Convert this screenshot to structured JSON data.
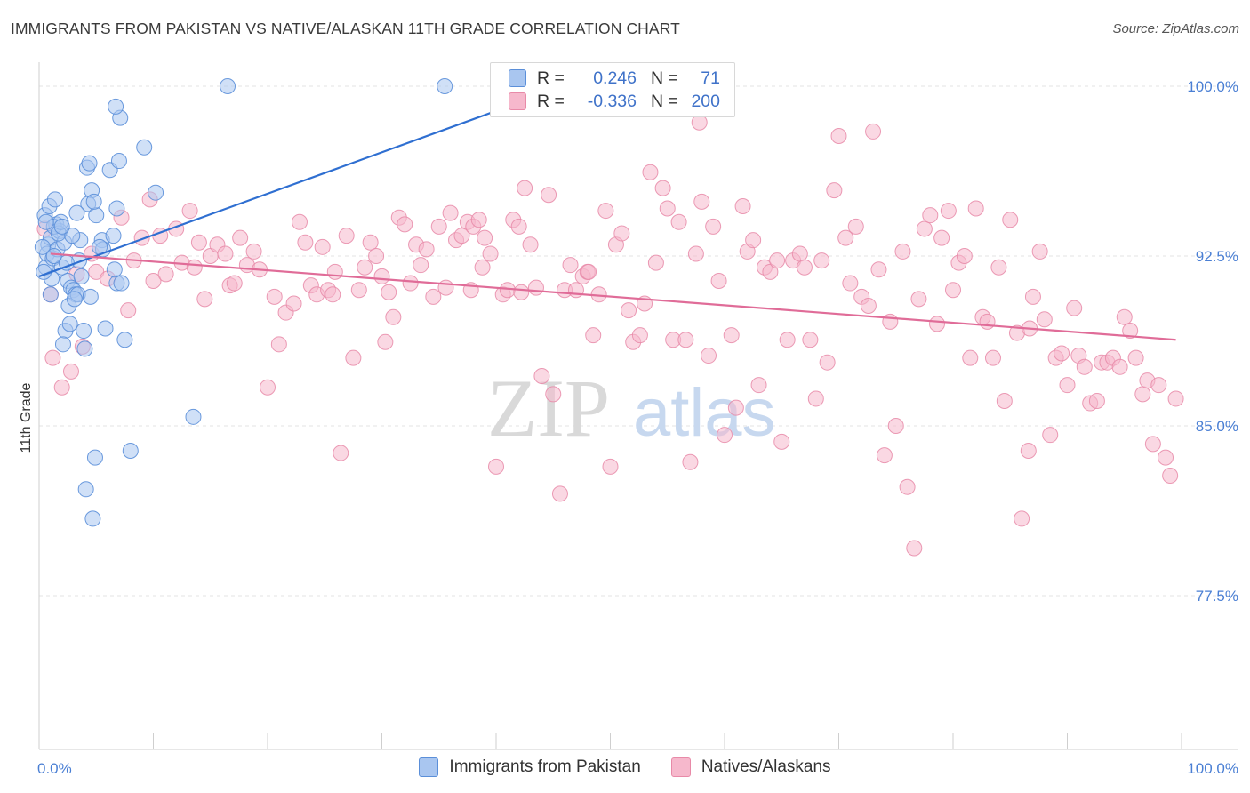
{
  "title": "IMMIGRANTS FROM PAKISTAN VS NATIVE/ALASKAN 11TH GRADE CORRELATION CHART",
  "source": "Source: ZipAtlas.com",
  "watermark": {
    "zip": "ZIP",
    "atlas": "atlas"
  },
  "legend_top": {
    "rows": [
      {
        "r_label": "R =",
        "r_value": "0.246",
        "n_label": "N =",
        "n_value": "71"
      },
      {
        "r_label": "R =",
        "r_value": "-0.336",
        "n_label": "N =",
        "n_value": "200"
      }
    ]
  },
  "colors": {
    "blue_fill": "#a9c6f0",
    "blue_stroke": "#5b8fd9",
    "blue_line": "#2f6fd1",
    "pink_fill": "#f6b8cc",
    "pink_stroke": "#e88aa8",
    "pink_line": "#e06c98",
    "axis_text": "#4a7fd4",
    "grid": "#e3e3e3"
  },
  "chart_data": {
    "type": "scatter",
    "title": "IMMIGRANTS FROM PAKISTAN VS NATIVE/ALASKAN 11TH GRADE CORRELATION CHART",
    "xlabel": "",
    "ylabel": "11th Grade",
    "xlim": [
      0,
      100
    ],
    "ylim": [
      70.5,
      102
    ],
    "x_tick_labels": [
      "0.0%",
      "100.0%"
    ],
    "y_ticks": [
      {
        "value": 100.0,
        "label": "100.0%"
      },
      {
        "value": 92.5,
        "label": "92.5%"
      },
      {
        "value": 85.0,
        "label": "85.0%"
      },
      {
        "value": 77.5,
        "label": "77.5%"
      }
    ],
    "legend_position": "bottom-center",
    "series": [
      {
        "name": "Immigrants from Pakistan",
        "r": 0.246,
        "n": 71,
        "trend": {
          "x": [
            0,
            40.5
          ],
          "y": [
            91.6,
            99.0
          ]
        },
        "points": [
          [
            0.6,
            92.0
          ],
          [
            0.8,
            93.0
          ],
          [
            0.5,
            94.3
          ],
          [
            0.7,
            92.6
          ],
          [
            1.0,
            93.3
          ],
          [
            1.2,
            92.4
          ],
          [
            0.9,
            94.7
          ],
          [
            1.4,
            95.0
          ],
          [
            1.5,
            93.9
          ],
          [
            1.6,
            92.8
          ],
          [
            1.8,
            93.6
          ],
          [
            2.0,
            92.0
          ],
          [
            2.2,
            93.1
          ],
          [
            1.1,
            91.5
          ],
          [
            1.3,
            93.8
          ],
          [
            2.5,
            91.4
          ],
          [
            2.8,
            91.1
          ],
          [
            3.0,
            91.0
          ],
          [
            3.2,
            90.8
          ],
          [
            2.6,
            90.3
          ],
          [
            3.5,
            92.3
          ],
          [
            3.6,
            93.2
          ],
          [
            3.7,
            91.6
          ],
          [
            3.4,
            90.8
          ],
          [
            2.3,
            89.2
          ],
          [
            2.1,
            88.6
          ],
          [
            3.9,
            89.2
          ],
          [
            4.0,
            88.4
          ],
          [
            4.2,
            96.4
          ],
          [
            4.4,
            96.6
          ],
          [
            4.6,
            95.4
          ],
          [
            4.3,
            94.8
          ],
          [
            5.0,
            94.3
          ],
          [
            6.2,
            96.3
          ],
          [
            7.0,
            96.7
          ],
          [
            7.1,
            98.6
          ],
          [
            6.7,
            99.1
          ],
          [
            9.2,
            97.3
          ],
          [
            10.2,
            95.3
          ],
          [
            6.8,
            94.6
          ],
          [
            5.5,
            93.2
          ],
          [
            6.5,
            93.4
          ],
          [
            5.6,
            92.8
          ],
          [
            6.8,
            91.3
          ],
          [
            7.2,
            91.3
          ],
          [
            6.6,
            91.9
          ],
          [
            5.8,
            89.3
          ],
          [
            7.5,
            88.8
          ],
          [
            8.0,
            83.9
          ],
          [
            4.9,
            83.6
          ],
          [
            4.1,
            82.2
          ],
          [
            4.7,
            80.9
          ],
          [
            13.5,
            85.4
          ],
          [
            16.5,
            100.0
          ],
          [
            35.5,
            100.0
          ],
          [
            2.7,
            89.5
          ],
          [
            3.1,
            90.6
          ],
          [
            4.8,
            94.9
          ],
          [
            1.7,
            93.5
          ],
          [
            0.4,
            91.8
          ],
          [
            0.3,
            92.9
          ],
          [
            2.9,
            93.4
          ],
          [
            1.9,
            94.0
          ],
          [
            3.3,
            94.4
          ],
          [
            2.4,
            92.2
          ],
          [
            4.5,
            90.7
          ],
          [
            5.3,
            92.9
          ],
          [
            0.6,
            94.0
          ],
          [
            1.0,
            90.8
          ],
          [
            1.3,
            92.5
          ],
          [
            2.0,
            93.8
          ]
        ]
      },
      {
        "name": "Natives/Alaskans",
        "r": -0.336,
        "n": 200,
        "trend": {
          "x": [
            1.0,
            99.5
          ],
          "y": [
            92.6,
            88.8
          ]
        },
        "points": [
          [
            0.5,
            93.7
          ],
          [
            1.0,
            90.8
          ],
          [
            1.2,
            88.0
          ],
          [
            2.0,
            86.7
          ],
          [
            2.8,
            87.4
          ],
          [
            3.3,
            91.7
          ],
          [
            3.8,
            88.5
          ],
          [
            4.6,
            92.6
          ],
          [
            5.0,
            91.8
          ],
          [
            6.0,
            91.5
          ],
          [
            7.2,
            94.2
          ],
          [
            7.8,
            90.1
          ],
          [
            8.3,
            92.3
          ],
          [
            9.0,
            93.3
          ],
          [
            9.7,
            95.0
          ],
          [
            10.0,
            91.4
          ],
          [
            10.6,
            93.4
          ],
          [
            11.1,
            91.7
          ],
          [
            12.0,
            93.7
          ],
          [
            12.5,
            92.2
          ],
          [
            13.2,
            94.5
          ],
          [
            14.0,
            93.1
          ],
          [
            14.5,
            90.6
          ],
          [
            15.0,
            92.5
          ],
          [
            15.6,
            93.0
          ],
          [
            16.3,
            92.6
          ],
          [
            16.7,
            91.2
          ],
          [
            17.1,
            91.3
          ],
          [
            17.6,
            93.3
          ],
          [
            18.2,
            92.1
          ],
          [
            18.8,
            92.7
          ],
          [
            19.3,
            91.9
          ],
          [
            20.0,
            86.7
          ],
          [
            20.6,
            90.7
          ],
          [
            21.0,
            88.6
          ],
          [
            21.6,
            90.0
          ],
          [
            22.3,
            90.4
          ],
          [
            22.8,
            94.0
          ],
          [
            23.3,
            93.1
          ],
          [
            23.8,
            91.2
          ],
          [
            24.3,
            90.8
          ],
          [
            24.8,
            92.9
          ],
          [
            25.3,
            91.0
          ],
          [
            25.9,
            91.8
          ],
          [
            26.4,
            83.8
          ],
          [
            26.9,
            93.4
          ],
          [
            27.5,
            88.0
          ],
          [
            28.0,
            91.0
          ],
          [
            28.5,
            92.0
          ],
          [
            29.0,
            93.1
          ],
          [
            29.5,
            92.5
          ],
          [
            30.0,
            91.6
          ],
          [
            30.6,
            90.9
          ],
          [
            31.0,
            89.8
          ],
          [
            31.5,
            94.2
          ],
          [
            32.0,
            93.9
          ],
          [
            32.5,
            91.3
          ],
          [
            33.0,
            93.0
          ],
          [
            33.4,
            92.1
          ],
          [
            33.9,
            92.8
          ],
          [
            34.5,
            90.7
          ],
          [
            35.0,
            93.8
          ],
          [
            35.6,
            91.1
          ],
          [
            36.0,
            94.4
          ],
          [
            36.5,
            93.2
          ],
          [
            37.0,
            93.4
          ],
          [
            37.5,
            94.0
          ],
          [
            38.0,
            93.8
          ],
          [
            38.5,
            94.1
          ],
          [
            39.0,
            93.3
          ],
          [
            39.5,
            92.6
          ],
          [
            40.0,
            83.2
          ],
          [
            40.6,
            90.8
          ],
          [
            41.0,
            91.0
          ],
          [
            41.5,
            94.1
          ],
          [
            42.0,
            93.8
          ],
          [
            42.5,
            95.5
          ],
          [
            43.0,
            93.0
          ],
          [
            43.5,
            91.1
          ],
          [
            44.0,
            87.2
          ],
          [
            44.6,
            95.2
          ],
          [
            45.0,
            86.4
          ],
          [
            45.6,
            82.0
          ],
          [
            46.0,
            91.0
          ],
          [
            46.5,
            92.1
          ],
          [
            47.0,
            91.0
          ],
          [
            47.6,
            91.6
          ],
          [
            48.0,
            91.8
          ],
          [
            48.5,
            89.0
          ],
          [
            49.0,
            90.8
          ],
          [
            49.6,
            94.5
          ],
          [
            50.0,
            83.2
          ],
          [
            50.5,
            93.0
          ],
          [
            51.0,
            93.5
          ],
          [
            51.6,
            90.1
          ],
          [
            52.0,
            88.7
          ],
          [
            52.6,
            89.0
          ],
          [
            53.0,
            90.4
          ],
          [
            53.5,
            96.2
          ],
          [
            54.0,
            92.2
          ],
          [
            54.6,
            95.5
          ],
          [
            55.0,
            94.6
          ],
          [
            55.5,
            88.8
          ],
          [
            56.0,
            94.0
          ],
          [
            56.6,
            88.8
          ],
          [
            57.0,
            83.4
          ],
          [
            57.5,
            92.6
          ],
          [
            58.0,
            94.9
          ],
          [
            58.6,
            88.1
          ],
          [
            59.0,
            93.8
          ],
          [
            59.5,
            91.4
          ],
          [
            60.0,
            84.6
          ],
          [
            60.6,
            89.0
          ],
          [
            61.0,
            85.8
          ],
          [
            61.6,
            94.7
          ],
          [
            62.0,
            92.7
          ],
          [
            62.5,
            93.2
          ],
          [
            63.0,
            86.8
          ],
          [
            63.5,
            92.0
          ],
          [
            64.0,
            91.8
          ],
          [
            64.6,
            92.3
          ],
          [
            65.0,
            84.3
          ],
          [
            65.5,
            88.8
          ],
          [
            66.0,
            92.3
          ],
          [
            66.6,
            92.6
          ],
          [
            67.0,
            92.0
          ],
          [
            67.5,
            88.8
          ],
          [
            68.0,
            86.2
          ],
          [
            68.5,
            92.3
          ],
          [
            69.0,
            87.8
          ],
          [
            69.6,
            95.4
          ],
          [
            70.0,
            97.8
          ],
          [
            70.6,
            93.3
          ],
          [
            71.0,
            91.3
          ],
          [
            71.5,
            93.8
          ],
          [
            72.0,
            90.7
          ],
          [
            72.6,
            90.3
          ],
          [
            73.0,
            98.0
          ],
          [
            73.5,
            91.9
          ],
          [
            74.0,
            83.7
          ],
          [
            74.5,
            89.6
          ],
          [
            75.0,
            85.0
          ],
          [
            75.6,
            92.7
          ],
          [
            76.0,
            82.3
          ],
          [
            76.6,
            79.6
          ],
          [
            77.0,
            90.6
          ],
          [
            77.5,
            93.7
          ],
          [
            78.0,
            94.3
          ],
          [
            78.6,
            89.5
          ],
          [
            79.0,
            93.3
          ],
          [
            79.6,
            94.5
          ],
          [
            80.0,
            91.0
          ],
          [
            80.5,
            92.2
          ],
          [
            81.0,
            92.5
          ],
          [
            81.5,
            88.0
          ],
          [
            82.0,
            94.6
          ],
          [
            82.6,
            89.8
          ],
          [
            83.0,
            89.6
          ],
          [
            83.5,
            88.0
          ],
          [
            84.0,
            92.0
          ],
          [
            84.5,
            86.1
          ],
          [
            85.0,
            94.1
          ],
          [
            85.6,
            89.1
          ],
          [
            86.0,
            80.9
          ],
          [
            86.6,
            83.9
          ],
          [
            87.0,
            90.7
          ],
          [
            87.6,
            92.7
          ],
          [
            88.0,
            89.7
          ],
          [
            88.5,
            84.6
          ],
          [
            89.0,
            88.0
          ],
          [
            89.5,
            88.2
          ],
          [
            90.0,
            86.8
          ],
          [
            90.6,
            90.2
          ],
          [
            91.0,
            88.1
          ],
          [
            91.5,
            87.6
          ],
          [
            92.0,
            86.0
          ],
          [
            92.6,
            86.1
          ],
          [
            93.0,
            87.8
          ],
          [
            93.5,
            87.8
          ],
          [
            94.0,
            88.0
          ],
          [
            94.6,
            87.6
          ],
          [
            95.0,
            89.8
          ],
          [
            95.5,
            89.2
          ],
          [
            96.0,
            88.0
          ],
          [
            96.6,
            86.4
          ],
          [
            97.0,
            87.0
          ],
          [
            97.5,
            84.2
          ],
          [
            98.0,
            86.8
          ],
          [
            98.6,
            83.6
          ],
          [
            99.0,
            82.8
          ],
          [
            99.5,
            86.2
          ],
          [
            57.8,
            98.4
          ],
          [
            86.7,
            89.3
          ],
          [
            25.7,
            90.8
          ],
          [
            38.8,
            92.0
          ],
          [
            48.1,
            91.8
          ],
          [
            42.2,
            90.9
          ],
          [
            37.8,
            91.0
          ],
          [
            30.3,
            88.7
          ],
          [
            13.6,
            92.0
          ]
        ]
      }
    ]
  }
}
